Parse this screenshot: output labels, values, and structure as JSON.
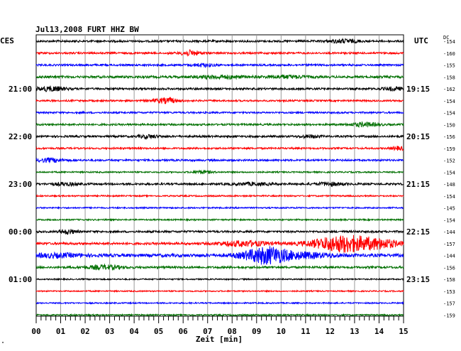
{
  "title": "Jul13,2008   FURT HHZ BW",
  "left_tz": "CES",
  "right_tz": "UTC",
  "dc_header": "DC",
  "xlabel": "Zeit [min]",
  "corner_mark": "\"",
  "chart_data": {
    "type": "line",
    "description_kind": "helicorder seismogram",
    "station": "FURT",
    "channel": "HHZ",
    "network": "BW",
    "date": "Jul13,2008",
    "xlabel": "Zeit [min]",
    "xlim": [
      0,
      15
    ],
    "x_ticks": [
      "00",
      "01",
      "02",
      "03",
      "04",
      "05",
      "06",
      "07",
      "08",
      "09",
      "10",
      "11",
      "12",
      "13",
      "14",
      "15"
    ],
    "left_time_labels": [
      {
        "row": 4,
        "text": "21:00"
      },
      {
        "row": 8,
        "text": "22:00"
      },
      {
        "row": 12,
        "text": "23:00"
      },
      {
        "row": 16,
        "text": "00:00"
      },
      {
        "row": 20,
        "text": "01:00"
      }
    ],
    "right_time_labels": [
      {
        "row": 4,
        "text": "19:15"
      },
      {
        "row": 8,
        "text": "20:15"
      },
      {
        "row": 12,
        "text": "21:15"
      },
      {
        "row": 16,
        "text": "22:15"
      },
      {
        "row": 20,
        "text": "23:15"
      }
    ],
    "trace_colors": [
      "#000000",
      "#ff0000",
      "#0000ff",
      "#007000"
    ],
    "traces": [
      {
        "dc": "-154",
        "amp": 1.4,
        "bursts": [
          [
            12.6,
            0.6,
            2.2
          ]
        ]
      },
      {
        "dc": "-160",
        "amp": 1.3,
        "bursts": [
          [
            6.3,
            0.4,
            3.5
          ]
        ]
      },
      {
        "dc": "-155",
        "amp": 1.3,
        "bursts": [
          [
            6.8,
            0.5,
            2.0
          ]
        ]
      },
      {
        "dc": "-158",
        "amp": 1.6,
        "bursts": [
          [
            7.5,
            1.0,
            1.8
          ],
          [
            10.2,
            0.8,
            1.8
          ]
        ]
      },
      {
        "dc": "-162",
        "amp": 1.4,
        "bursts": [
          [
            0.6,
            0.6,
            3.0
          ],
          [
            14.6,
            0.4,
            2.2
          ]
        ]
      },
      {
        "dc": "-154",
        "amp": 1.2,
        "bursts": [
          [
            5.3,
            0.5,
            3.5
          ]
        ]
      },
      {
        "dc": "-154",
        "amp": 1.2,
        "bursts": []
      },
      {
        "dc": "-150",
        "amp": 1.3,
        "bursts": [
          [
            13.4,
            0.6,
            2.5
          ]
        ]
      },
      {
        "dc": "-156",
        "amp": 1.4,
        "bursts": [
          [
            4.6,
            0.4,
            2.2
          ],
          [
            11.2,
            0.4,
            1.8
          ]
        ]
      },
      {
        "dc": "-159",
        "amp": 1.2,
        "bursts": [
          [
            14.8,
            0.3,
            2.2
          ]
        ]
      },
      {
        "dc": "-152",
        "amp": 1.3,
        "bursts": [
          [
            0.6,
            0.5,
            2.6
          ]
        ]
      },
      {
        "dc": "-154",
        "amp": 1.0,
        "bursts": [
          [
            6.8,
            0.4,
            2.0
          ]
        ]
      },
      {
        "dc": "-148",
        "amp": 1.4,
        "bursts": [
          [
            1.2,
            0.5,
            1.8
          ],
          [
            8.8,
            0.8,
            1.6
          ],
          [
            12.0,
            0.6,
            2.0
          ]
        ]
      },
      {
        "dc": "-154",
        "amp": 1.0,
        "bursts": []
      },
      {
        "dc": "-145",
        "amp": 1.0,
        "bursts": []
      },
      {
        "dc": "-154",
        "amp": 1.0,
        "bursts": []
      },
      {
        "dc": "-144",
        "amp": 1.4,
        "bursts": [
          [
            1.3,
            0.3,
            3.0
          ]
        ]
      },
      {
        "dc": "-157",
        "amp": 1.6,
        "bursts": [
          [
            8.5,
            1.0,
            3.5
          ],
          [
            12.6,
            1.3,
            11.5
          ],
          [
            14.2,
            0.7,
            4.0
          ]
        ]
      },
      {
        "dc": "-144",
        "amp": 2.2,
        "bursts": [
          [
            0.8,
            1.0,
            2.0
          ],
          [
            9.4,
            0.9,
            11.0
          ],
          [
            11.0,
            1.2,
            3.0
          ]
        ]
      },
      {
        "dc": "-156",
        "amp": 1.5,
        "bursts": [
          [
            2.8,
            0.7,
            2.6
          ]
        ]
      },
      {
        "dc": "-158",
        "amp": 0.9,
        "bursts": []
      },
      {
        "dc": "-153",
        "amp": 0.9,
        "bursts": []
      },
      {
        "dc": "-157",
        "amp": 0.9,
        "bursts": []
      },
      {
        "dc": "-159",
        "amp": 0.9,
        "bursts": []
      }
    ]
  }
}
